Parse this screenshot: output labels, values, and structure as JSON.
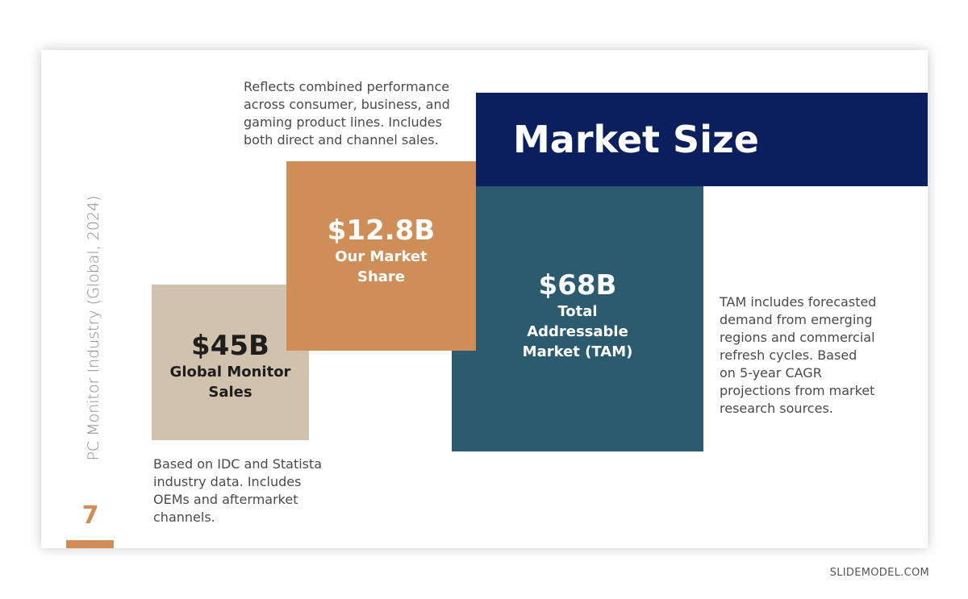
{
  "slide": {
    "subtitle": "PC Monitor Industry (Global, 2024)",
    "page_number": "7",
    "title": "Market Size"
  },
  "boxes": {
    "global": {
      "value": "$45B",
      "label": "Global Monitor Sales",
      "description": "Based on IDC and Statista industry data. Includes OEMs and aftermarket channels."
    },
    "share": {
      "value": "$12.8B",
      "label": "Our Market Share",
      "description": "Reflects combined performance across consumer, business, and gaming product lines. Includes both direct and channel sales."
    },
    "tam": {
      "value": "$68B",
      "label": "Total Addressable Market (TAM)",
      "description": "TAM includes forecasted demand from emerging regions and commercial refresh cycles. Based on 5-year CAGR projections from market research sources."
    }
  },
  "colors": {
    "navy": "#0b1e5e",
    "orange": "#cf8e57",
    "beige": "#d1c2ad",
    "teal": "#2c5b70"
  },
  "watermark": "SLIDEMODEL.COM"
}
